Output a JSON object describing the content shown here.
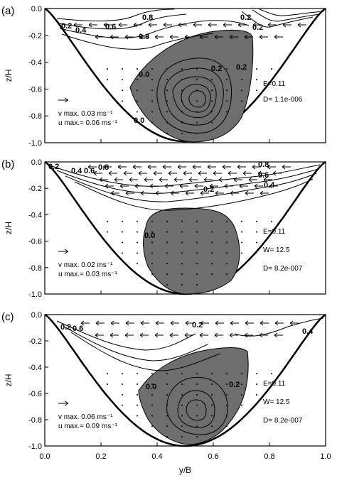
{
  "figure": {
    "xlabel": "y/B",
    "x_ticks": [
      "0.0",
      "0.2",
      "0.4",
      "0.6",
      "0.8",
      "1.0"
    ]
  },
  "chart_data": [
    {
      "type": "contour",
      "panel": "(a)",
      "xlabel": "y/B",
      "ylabel": "z/H",
      "xlim": [
        0.0,
        1.0
      ],
      "ylim": [
        -1.0,
        0.0
      ],
      "y_ticks": [
        "0.0",
        "-0.2",
        "-0.4",
        "-0.6",
        "-0.8",
        "-1.0"
      ],
      "contour_labels": [
        "0.8",
        "0.6",
        "0.4",
        "0.2",
        "0.8",
        "0.2",
        "0.0",
        "0.2",
        "0.0",
        "0.2",
        "0.2"
      ],
      "shaded_region": "negative values",
      "vmax_text": "v max. 0.03 ms⁻¹",
      "umax_text": "u max.= 0.06 ms⁻¹",
      "params": [
        "E=0.11",
        "D= 1.1e-006"
      ]
    },
    {
      "type": "contour",
      "panel": "(b)",
      "xlabel": "y/B",
      "ylabel": "z/H",
      "xlim": [
        0.0,
        1.0
      ],
      "ylim": [
        -1.0,
        0.0
      ],
      "y_ticks": [
        "0.0",
        "-0.2",
        "-0.4",
        "-0.6",
        "-0.8",
        "-1.0"
      ],
      "contour_labels": [
        "0.2",
        "0.4",
        "0.6",
        "0.8",
        "0.8",
        "0.6",
        "0.4",
        "0.2",
        "0.0"
      ],
      "shaded_region": "negative values",
      "vmax_text": "v max. 0.02 ms⁻¹",
      "umax_text": "u max.= 0.03 ms⁻¹",
      "params": [
        "E=0.11",
        "W=  12.5",
        "D= 8.2e-007"
      ]
    },
    {
      "type": "contour",
      "panel": "(c)",
      "xlabel": "y/B",
      "ylabel": "z/H",
      "xlim": [
        0.0,
        1.0
      ],
      "ylim": [
        -1.0,
        0.0
      ],
      "y_ticks": [
        "0.0",
        "-0.2",
        "-0.4",
        "-0.6",
        "-0.8",
        "-1.0"
      ],
      "contour_labels": [
        "0.2",
        "0.6",
        "0.4",
        "0.2",
        "0.0",
        "0.2"
      ],
      "shaded_region": "negative values",
      "vmax_text": "v max. 0.06 ms⁻¹",
      "umax_text": "u max.= 0.09 ms⁻¹",
      "params": [
        "E=0.11",
        "W=  12.5",
        "D= 8.2e-007"
      ]
    }
  ]
}
